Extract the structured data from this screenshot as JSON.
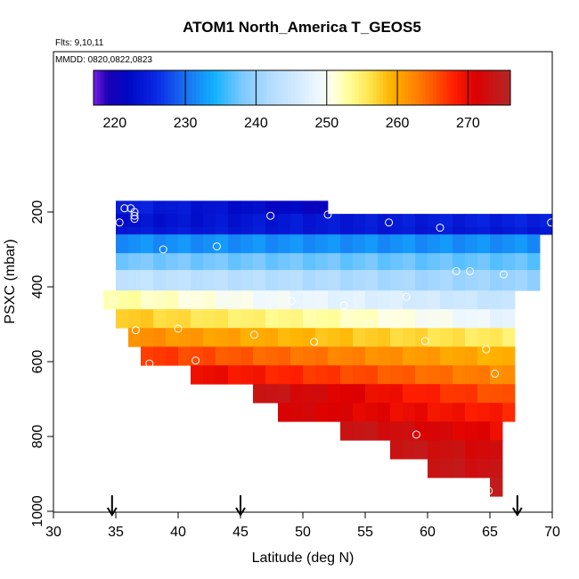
{
  "chart_data": {
    "type": "heatmap",
    "title": "ATOM1 North_America T_GEOS5",
    "annotations": [
      "Flts: 9,10,11",
      "MMDD: 0820,0822,0823"
    ],
    "xlabel": "Latitude (deg N)",
    "ylabel": "PSXC (mbar)",
    "xlim": [
      30,
      70
    ],
    "ylim": [
      1000,
      0
    ],
    "x_ticks": [
      "30",
      "35",
      "40",
      "45",
      "50",
      "55",
      "60",
      "65",
      "70"
    ],
    "y_ticks": [
      "200",
      "400",
      "600",
      "800",
      "1000"
    ],
    "colorbar": {
      "min": 217,
      "max": 276,
      "ticks": [
        "220",
        "230",
        "240",
        "250",
        "260",
        "270"
      ],
      "tick_values": [
        220,
        230,
        240,
        250,
        260,
        270
      ],
      "line_values": [
        230,
        240,
        250,
        260,
        270
      ]
    },
    "cell_width_deg": 1,
    "bands": [
      {
        "p_top": 170,
        "p_bot": 205,
        "lat_start": 35,
        "lat_end": 52,
        "t_start": 225,
        "t_end": 221
      },
      {
        "p_top": 205,
        "p_bot": 240,
        "lat_start": 35,
        "lat_end": 70,
        "t_start": 223,
        "t_end": 225
      },
      {
        "p_top": 240,
        "p_bot": 260,
        "lat_start": 35,
        "lat_end": 70,
        "t_start": 224,
        "t_end": 224
      },
      {
        "p_top": 260,
        "p_bot": 310,
        "lat_start": 35,
        "lat_end": 69,
        "t_start": 232,
        "t_end": 232
      },
      {
        "p_top": 310,
        "p_bot": 355,
        "lat_start": 35,
        "lat_end": 69,
        "t_start": 238,
        "t_end": 237
      },
      {
        "p_top": 355,
        "p_bot": 410,
        "lat_start": 35,
        "lat_end": 69,
        "t_start": 244,
        "t_end": 240
      },
      {
        "p_top": 410,
        "p_bot": 460,
        "lat_start": 34,
        "lat_end": 67,
        "t_start": 253,
        "t_end": 244
      },
      {
        "p_top": 460,
        "p_bot": 510,
        "lat_start": 35,
        "lat_end": 67,
        "t_start": 258,
        "t_end": 248
      },
      {
        "p_top": 510,
        "p_bot": 560,
        "lat_start": 36,
        "lat_end": 67,
        "t_start": 262,
        "t_end": 255
      },
      {
        "p_top": 560,
        "p_bot": 610,
        "lat_start": 37,
        "lat_end": 67,
        "t_start": 267,
        "t_end": 259
      },
      {
        "p_top": 610,
        "p_bot": 660,
        "lat_start": 41,
        "lat_end": 67,
        "t_start": 270,
        "t_end": 262
      },
      {
        "p_top": 660,
        "p_bot": 710,
        "lat_start": 46,
        "lat_end": 67,
        "t_start": 274,
        "t_end": 265
      },
      {
        "p_top": 710,
        "p_bot": 760,
        "lat_start": 48,
        "lat_end": 67,
        "t_start": 272,
        "t_end": 268
      },
      {
        "p_top": 760,
        "p_bot": 810,
        "lat_start": 53,
        "lat_end": 66,
        "t_start": 274,
        "t_end": 270
      },
      {
        "p_top": 810,
        "p_bot": 860,
        "lat_start": 57,
        "lat_end": 66,
        "t_start": 274,
        "t_end": 272
      },
      {
        "p_top": 860,
        "p_bot": 910,
        "lat_start": 60,
        "lat_end": 66,
        "t_start": 274,
        "t_end": 273
      },
      {
        "p_top": 910,
        "p_bot": 960,
        "lat_start": 65,
        "lat_end": 66,
        "t_start": 275,
        "t_end": 275
      }
    ],
    "points": [
      {
        "lat": 35.7,
        "p": 190
      },
      {
        "lat": 36.2,
        "p": 190
      },
      {
        "lat": 36.5,
        "p": 200
      },
      {
        "lat": 36.5,
        "p": 210
      },
      {
        "lat": 36.5,
        "p": 218
      },
      {
        "lat": 35.3,
        "p": 228
      },
      {
        "lat": 47.4,
        "p": 210
      },
      {
        "lat": 52.0,
        "p": 207
      },
      {
        "lat": 56.9,
        "p": 228
      },
      {
        "lat": 61.0,
        "p": 242
      },
      {
        "lat": 69.9,
        "p": 228
      },
      {
        "lat": 43.1,
        "p": 292
      },
      {
        "lat": 38.8,
        "p": 300
      },
      {
        "lat": 62.3,
        "p": 358
      },
      {
        "lat": 63.4,
        "p": 358
      },
      {
        "lat": 66.1,
        "p": 367
      },
      {
        "lat": 34.8,
        "p": 437
      },
      {
        "lat": 49.1,
        "p": 438
      },
      {
        "lat": 53.3,
        "p": 450
      },
      {
        "lat": 58.3,
        "p": 427
      },
      {
        "lat": 55.3,
        "p": 498
      },
      {
        "lat": 36.6,
        "p": 516
      },
      {
        "lat": 40.0,
        "p": 512
      },
      {
        "lat": 46.1,
        "p": 528
      },
      {
        "lat": 50.9,
        "p": 547
      },
      {
        "lat": 59.8,
        "p": 545
      },
      {
        "lat": 64.7,
        "p": 567
      },
      {
        "lat": 37.7,
        "p": 605
      },
      {
        "lat": 41.4,
        "p": 597
      },
      {
        "lat": 65.4,
        "p": 632
      },
      {
        "lat": 59.1,
        "p": 795
      },
      {
        "lat": 64.9,
        "p": 945
      }
    ],
    "arrows_lat": [
      34.7,
      45.0,
      67.2
    ],
    "colorscale": [
      [
        217,
        "#7a1fe6"
      ],
      [
        219,
        "#1a00b4"
      ],
      [
        222,
        "#0008c4"
      ],
      [
        226,
        "#0a2ae6"
      ],
      [
        230,
        "#1a70f2"
      ],
      [
        234,
        "#10b0ff"
      ],
      [
        238,
        "#7cc8ff"
      ],
      [
        242,
        "#b2dcff"
      ],
      [
        246,
        "#d4ebff"
      ],
      [
        249,
        "#f0f8ff"
      ],
      [
        251,
        "#ffffe0"
      ],
      [
        253,
        "#ffff9c"
      ],
      [
        256,
        "#ffe650"
      ],
      [
        259,
        "#ffb400"
      ],
      [
        262,
        "#ff8c00"
      ],
      [
        265,
        "#ff5a00"
      ],
      [
        268,
        "#ff1e00"
      ],
      [
        271,
        "#dc0000"
      ],
      [
        276,
        "#b42828"
      ]
    ]
  }
}
